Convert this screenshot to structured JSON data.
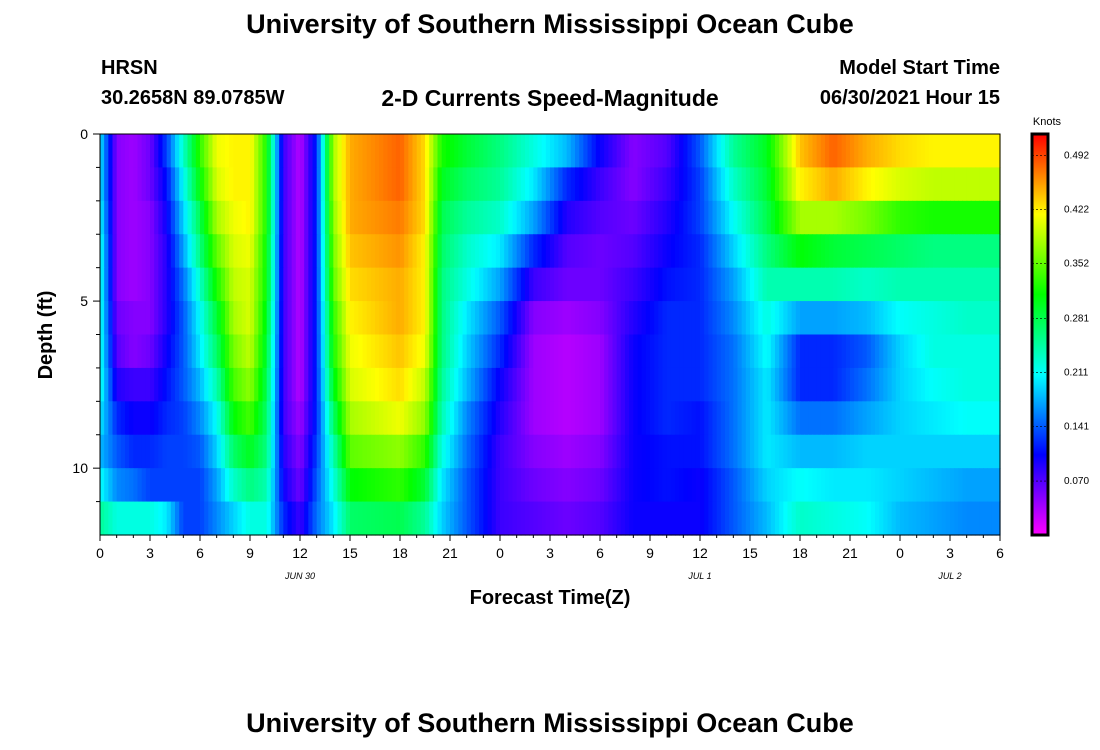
{
  "header": {
    "title": "University of Southern Mississippi Ocean Cube",
    "station": "HRSN",
    "coordinates": "30.2658N  89.0785W",
    "subtitle": "2-D Currents Speed-Magnitude",
    "model_start_label": "Model Start Time",
    "model_start_value": "06/30/2021 Hour 15",
    "footer_title": "University of Southern Mississippi Ocean Cube"
  },
  "chart_data": {
    "type": "heatmap",
    "title": "2-D Currents Speed-Magnitude",
    "xlabel": "Forecast Time(Z)",
    "ylabel": "Depth (ft)",
    "x_hours_range": [
      0,
      54
    ],
    "x_tick_hours": [
      0,
      3,
      6,
      9,
      12,
      15,
      18,
      21,
      24,
      27,
      30,
      33,
      36,
      39,
      42,
      45,
      48,
      51,
      54
    ],
    "x_tick_labels": [
      "0",
      "3",
      "6",
      "9",
      "12",
      "15",
      "18",
      "21",
      "0",
      "3",
      "6",
      "9",
      "12",
      "15",
      "18",
      "21",
      "0",
      "3",
      "6"
    ],
    "date_labels": [
      {
        "text": "JUN 30",
        "hour": 12
      },
      {
        "text": "JUL 1",
        "hour": 36
      },
      {
        "text": "JUL 2",
        "hour": 51
      }
    ],
    "y_range_ft": [
      0,
      12
    ],
    "y_ticks": [
      0,
      5,
      10
    ],
    "y_tick_labels": [
      "0",
      "5",
      "10"
    ],
    "depth_levels_ft": [
      0.5,
      1.5,
      2.5,
      3.5,
      4.5,
      5.5,
      6.5,
      7.5,
      8.5,
      9.5,
      10.5,
      11.5
    ],
    "colorbar": {
      "unit": "Knots",
      "range": [
        0,
        0.52
      ],
      "ticks": [
        0.07,
        0.141,
        0.211,
        0.281,
        0.352,
        0.422,
        0.492
      ],
      "tick_labels": [
        "0.070",
        "0.141",
        "0.211",
        "0.281",
        "0.352",
        "0.422",
        "0.492"
      ]
    },
    "speed_profiles": [
      {
        "hour": 0,
        "values": [
          0.2,
          0.2,
          0.21,
          0.22,
          0.22,
          0.22,
          0.22,
          0.22,
          0.2,
          0.18,
          0.21,
          0.25
        ]
      },
      {
        "hour": 1,
        "values": [
          0.05,
          0.05,
          0.05,
          0.05,
          0.05,
          0.06,
          0.07,
          0.09,
          0.12,
          0.14,
          0.16,
          0.22
        ]
      },
      {
        "hour": 2,
        "values": [
          0.04,
          0.04,
          0.04,
          0.04,
          0.04,
          0.05,
          0.05,
          0.08,
          0.1,
          0.12,
          0.15,
          0.22
        ]
      },
      {
        "hour": 3,
        "values": [
          0.06,
          0.06,
          0.05,
          0.05,
          0.05,
          0.05,
          0.06,
          0.08,
          0.1,
          0.12,
          0.13,
          0.22
        ]
      },
      {
        "hour": 4,
        "values": [
          0.13,
          0.11,
          0.1,
          0.09,
          0.09,
          0.09,
          0.1,
          0.11,
          0.12,
          0.13,
          0.13,
          0.2
        ]
      },
      {
        "hour": 5,
        "values": [
          0.23,
          0.21,
          0.19,
          0.17,
          0.15,
          0.14,
          0.14,
          0.14,
          0.13,
          0.13,
          0.13,
          0.13
        ]
      },
      {
        "hour": 6,
        "values": [
          0.33,
          0.31,
          0.28,
          0.26,
          0.23,
          0.21,
          0.2,
          0.18,
          0.16,
          0.14,
          0.13,
          0.13
        ]
      },
      {
        "hour": 7,
        "values": [
          0.41,
          0.4,
          0.38,
          0.35,
          0.32,
          0.29,
          0.27,
          0.24,
          0.21,
          0.19,
          0.17,
          0.16
        ]
      },
      {
        "hour": 8,
        "values": [
          0.42,
          0.42,
          0.41,
          0.4,
          0.39,
          0.38,
          0.36,
          0.34,
          0.31,
          0.27,
          0.23,
          0.19
        ]
      },
      {
        "hour": 9,
        "values": [
          0.42,
          0.42,
          0.42,
          0.41,
          0.4,
          0.4,
          0.39,
          0.37,
          0.34,
          0.3,
          0.26,
          0.22
        ]
      },
      {
        "hour": 10,
        "values": [
          0.32,
          0.32,
          0.32,
          0.31,
          0.31,
          0.3,
          0.29,
          0.28,
          0.27,
          0.26,
          0.24,
          0.22
        ]
      },
      {
        "hour": 11,
        "values": [
          0.08,
          0.08,
          0.08,
          0.08,
          0.08,
          0.08,
          0.08,
          0.08,
          0.08,
          0.09,
          0.1,
          0.12
        ]
      },
      {
        "hour": 12,
        "values": [
          0.03,
          0.03,
          0.03,
          0.03,
          0.03,
          0.03,
          0.03,
          0.03,
          0.04,
          0.05,
          0.06,
          0.08
        ]
      },
      {
        "hour": 13,
        "values": [
          0.12,
          0.12,
          0.12,
          0.12,
          0.12,
          0.12,
          0.12,
          0.12,
          0.12,
          0.13,
          0.14,
          0.15
        ]
      },
      {
        "hour": 14,
        "values": [
          0.38,
          0.38,
          0.37,
          0.36,
          0.35,
          0.33,
          0.32,
          0.3,
          0.27,
          0.24,
          0.22,
          0.2
        ]
      },
      {
        "hour": 15,
        "values": [
          0.45,
          0.45,
          0.45,
          0.44,
          0.43,
          0.42,
          0.41,
          0.4,
          0.38,
          0.35,
          0.31,
          0.27
        ]
      },
      {
        "hour": 18,
        "values": [
          0.48,
          0.48,
          0.47,
          0.46,
          0.45,
          0.45,
          0.44,
          0.43,
          0.41,
          0.37,
          0.33,
          0.28
        ]
      },
      {
        "hour": 19.5,
        "values": [
          0.43,
          0.43,
          0.43,
          0.42,
          0.42,
          0.42,
          0.41,
          0.39,
          0.37,
          0.33,
          0.29,
          0.25
        ]
      },
      {
        "hour": 20.5,
        "values": [
          0.32,
          0.3,
          0.28,
          0.27,
          0.26,
          0.26,
          0.26,
          0.25,
          0.24,
          0.22,
          0.2,
          0.19
        ]
      },
      {
        "hour": 22,
        "values": [
          0.29,
          0.27,
          0.25,
          0.23,
          0.22,
          0.2,
          0.19,
          0.18,
          0.16,
          0.15,
          0.14,
          0.14
        ]
      },
      {
        "hour": 24,
        "values": [
          0.26,
          0.25,
          0.23,
          0.2,
          0.17,
          0.14,
          0.12,
          0.1,
          0.09,
          0.08,
          0.08,
          0.08
        ]
      },
      {
        "hour": 26,
        "values": [
          0.22,
          0.2,
          0.17,
          0.12,
          0.08,
          0.05,
          0.04,
          0.04,
          0.04,
          0.05,
          0.06,
          0.07
        ]
      },
      {
        "hour": 28,
        "values": [
          0.18,
          0.12,
          0.09,
          0.07,
          0.06,
          0.04,
          0.03,
          0.03,
          0.03,
          0.04,
          0.05,
          0.06
        ]
      },
      {
        "hour": 30,
        "values": [
          0.1,
          0.08,
          0.07,
          0.06,
          0.06,
          0.05,
          0.04,
          0.04,
          0.04,
          0.05,
          0.06,
          0.07
        ]
      },
      {
        "hour": 32,
        "values": [
          0.05,
          0.05,
          0.06,
          0.07,
          0.08,
          0.09,
          0.1,
          0.1,
          0.1,
          0.1,
          0.1,
          0.1
        ]
      },
      {
        "hour": 34,
        "values": [
          0.07,
          0.08,
          0.09,
          0.1,
          0.11,
          0.12,
          0.12,
          0.12,
          0.12,
          0.11,
          0.11,
          0.1
        ]
      },
      {
        "hour": 36,
        "values": [
          0.14,
          0.13,
          0.13,
          0.12,
          0.12,
          0.12,
          0.12,
          0.12,
          0.11,
          0.11,
          0.1,
          0.1
        ]
      },
      {
        "hour": 38,
        "values": [
          0.25,
          0.23,
          0.21,
          0.19,
          0.17,
          0.16,
          0.15,
          0.15,
          0.15,
          0.15,
          0.14,
          0.14
        ]
      },
      {
        "hour": 40,
        "values": [
          0.3,
          0.29,
          0.28,
          0.26,
          0.24,
          0.22,
          0.21,
          0.2,
          0.2,
          0.2,
          0.19,
          0.18
        ]
      },
      {
        "hour": 42,
        "values": [
          0.44,
          0.42,
          0.38,
          0.31,
          0.24,
          0.17,
          0.12,
          0.12,
          0.15,
          0.18,
          0.21,
          0.23
        ]
      },
      {
        "hour": 44,
        "values": [
          0.48,
          0.45,
          0.38,
          0.29,
          0.24,
          0.17,
          0.12,
          0.12,
          0.15,
          0.18,
          0.2,
          0.22
        ]
      },
      {
        "hour": 46,
        "values": [
          0.45,
          0.42,
          0.36,
          0.28,
          0.23,
          0.18,
          0.14,
          0.15,
          0.17,
          0.19,
          0.2,
          0.21
        ]
      },
      {
        "hour": 48,
        "values": [
          0.43,
          0.4,
          0.33,
          0.27,
          0.24,
          0.21,
          0.19,
          0.19,
          0.19,
          0.19,
          0.19,
          0.18
        ]
      },
      {
        "hour": 50,
        "values": [
          0.42,
          0.39,
          0.32,
          0.26,
          0.24,
          0.22,
          0.22,
          0.21,
          0.2,
          0.19,
          0.18,
          0.17
        ]
      },
      {
        "hour": 52,
        "values": [
          0.42,
          0.39,
          0.32,
          0.26,
          0.24,
          0.23,
          0.22,
          0.22,
          0.21,
          0.19,
          0.17,
          0.16
        ]
      },
      {
        "hour": 54,
        "values": [
          0.42,
          0.39,
          0.32,
          0.26,
          0.24,
          0.23,
          0.22,
          0.22,
          0.21,
          0.19,
          0.17,
          0.16
        ]
      }
    ]
  }
}
